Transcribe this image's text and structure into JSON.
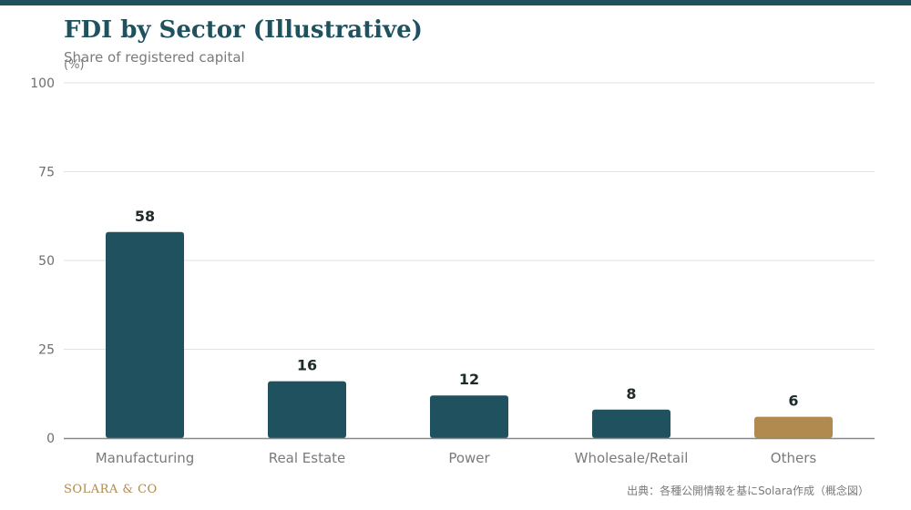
{
  "title": "FDI by Sector (Illustrative)",
  "subtitle": "Share of registered capital",
  "footer": {
    "brand": "SOLARA & CO",
    "source": "出典：各種公開情報を基にSolara作成（概念図）"
  },
  "colors": {
    "top_bar": "#1f525e",
    "primary": "#1f525e",
    "accent": "#b08a4e",
    "grid": "#e2e2e2",
    "axis": "#888888",
    "label": "#1f2a2a"
  },
  "chart_data": {
    "type": "bar",
    "ylabel": "(%)",
    "xlabel": "",
    "ylim": [
      0,
      100
    ],
    "yticks": [
      0,
      25,
      50,
      75,
      100
    ],
    "grid": true,
    "categories": [
      "Manufacturing",
      "Real Estate",
      "Power",
      "Wholesale/Retail",
      "Others"
    ],
    "values": [
      58,
      16,
      12,
      8,
      6
    ],
    "bar_colors": [
      "#1f525e",
      "#1f525e",
      "#1f525e",
      "#1f525e",
      "#b08a4e"
    ],
    "data_labels": [
      "58",
      "16",
      "12",
      "8",
      "6"
    ]
  }
}
